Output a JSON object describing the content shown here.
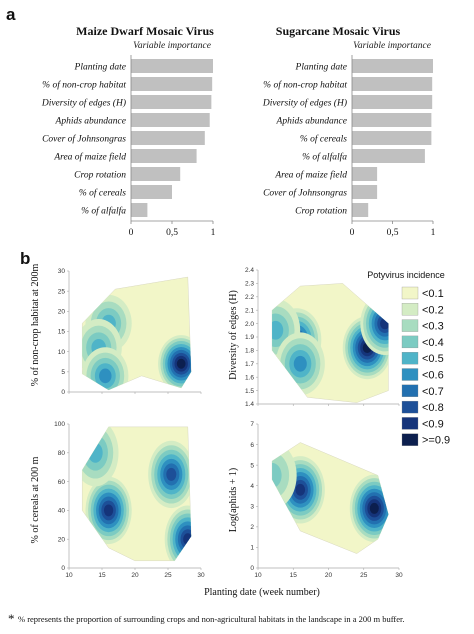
{
  "panel_a": {
    "letter": "a"
  },
  "panel_b": {
    "letter": "b"
  },
  "chart_data": [
    {
      "type": "bar",
      "orientation": "horizontal",
      "title": "Maize Dwarf Mosaic Virus",
      "subtitle": "Variable importance",
      "categories": [
        "Planting date",
        "% of non-crop habitat",
        "Diversity of edges (H)",
        "Aphids abundance",
        "Cover of Johnsongras",
        "Area of maize field",
        "Crop rotation",
        "% of cereals",
        "% of alfalfa"
      ],
      "values": [
        1.0,
        0.99,
        0.98,
        0.96,
        0.9,
        0.8,
        0.6,
        0.5,
        0.2
      ],
      "xlim": [
        0,
        1
      ],
      "xticks": [
        "0",
        "0,5",
        "1"
      ],
      "bar_color": "#c0c0c0"
    },
    {
      "type": "bar",
      "orientation": "horizontal",
      "title": "Sugarcane Mosaic Virus",
      "subtitle": "Variable importance",
      "categories": [
        "Planting date",
        "% of non-crop habitat",
        "Diversity of edges (H)",
        "Aphids abundance",
        "% of cereals",
        "% of alfalfa",
        "Area of maize field",
        "Cover of Johnsongras",
        "Crop rotation"
      ],
      "values": [
        1.0,
        0.99,
        0.99,
        0.98,
        0.98,
        0.9,
        0.31,
        0.31,
        0.2
      ],
      "xlim": [
        0,
        1
      ],
      "xticks": [
        "0",
        "0,5",
        "1"
      ],
      "bar_color": "#c0c0c0"
    },
    {
      "type": "heatmap",
      "subtype": "contour",
      "ylabel": "% of non-crop habitat at 200m",
      "xlim": [
        10,
        30
      ],
      "ylim": [
        0,
        30
      ],
      "yticks": [
        "0",
        "5",
        "10",
        "15",
        "20",
        "25",
        "30"
      ],
      "hotspots": [
        {
          "x": 27,
          "y": 7,
          "peak": 0.95
        },
        {
          "x": 16,
          "y": 17,
          "peak": 0.45
        },
        {
          "x": 14.5,
          "y": 11,
          "peak": 0.45
        },
        {
          "x": 15.5,
          "y": 4,
          "peak": 0.5
        }
      ]
    },
    {
      "type": "heatmap",
      "subtype": "contour",
      "ylabel": "Diversity of edges (H)",
      "xlim": [
        10,
        30
      ],
      "ylim": [
        1.4,
        2.4
      ],
      "yticks": [
        "1.4",
        "1.5",
        "1.6",
        "1.7",
        "1.8",
        "1.9",
        "2.0",
        "2.1",
        "2.2",
        "2.3",
        "2.4"
      ],
      "hotspots": [
        {
          "x": 25.5,
          "y": 1.82,
          "peak": 0.95
        },
        {
          "x": 15.5,
          "y": 1.88,
          "peak": 0.75
        },
        {
          "x": 12.5,
          "y": 1.95,
          "peak": 0.45
        },
        {
          "x": 16,
          "y": 1.7,
          "peak": 0.5
        },
        {
          "x": 28,
          "y": 2.0,
          "peak": 0.8
        }
      ]
    },
    {
      "type": "heatmap",
      "subtype": "contour",
      "ylabel": "% of cereals at 200 m",
      "xlabel": "Planting date  (week number)",
      "xlim": [
        10,
        30
      ],
      "ylim": [
        0,
        100
      ],
      "xticks": [
        "10",
        "15",
        "20",
        "25",
        "30"
      ],
      "yticks": [
        "0",
        "20",
        "40",
        "60",
        "80",
        "100"
      ],
      "hotspots": [
        {
          "x": 16,
          "y": 40,
          "peak": 0.85
        },
        {
          "x": 25.5,
          "y": 65,
          "peak": 0.75
        },
        {
          "x": 14,
          "y": 80,
          "peak": 0.45
        },
        {
          "x": 28,
          "y": 20,
          "peak": 0.85
        }
      ]
    },
    {
      "type": "heatmap",
      "subtype": "contour",
      "ylabel": "Log(aphids + 1)",
      "xlabel": "Planting date  (week number)",
      "xlim": [
        10,
        30
      ],
      "ylim": [
        0,
        7
      ],
      "xticks": [
        "10",
        "15",
        "20",
        "25",
        "30"
      ],
      "yticks": [
        "0",
        "1",
        "2",
        "3",
        "4",
        "5",
        "6",
        "7"
      ],
      "hotspots": [
        {
          "x": 26.5,
          "y": 2.9,
          "peak": 0.95
        },
        {
          "x": 16,
          "y": 3.8,
          "peak": 0.8
        },
        {
          "x": 12,
          "y": 4.5,
          "peak": 0.35
        }
      ]
    }
  ],
  "shared": {
    "xlabel": "Planting date  (week number)"
  },
  "legend": {
    "title": "Potyvirus incidence",
    "items": [
      {
        "label": "<0.1",
        "color": "#f2f6c8"
      },
      {
        "label": "<0.2",
        "color": "#d4ecc4"
      },
      {
        "label": "<0.3",
        "color": "#a8dcc0"
      },
      {
        "label": "<0.4",
        "color": "#7ccbc2"
      },
      {
        "label": "<0.5",
        "color": "#4fb4c8"
      },
      {
        "label": "<0.6",
        "color": "#2e90c0"
      },
      {
        "label": "<0.7",
        "color": "#2270b0"
      },
      {
        "label": "<0.8",
        "color": "#1d4f98"
      },
      {
        "label": "<0.9",
        "color": "#15347a"
      },
      {
        "label": ">=0.9",
        "color": "#0c1f4e"
      }
    ]
  },
  "footnote": {
    "star": "*",
    "text": "% represents the proportion of surrounding crops and non-agricultural habitats in the landscape in a 200 m buffer."
  }
}
